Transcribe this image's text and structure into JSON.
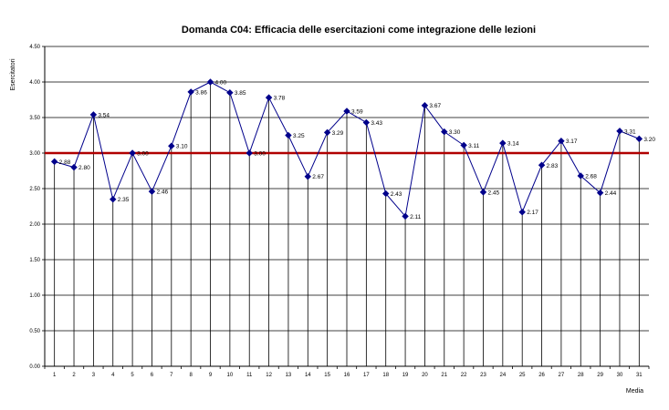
{
  "chart_data": {
    "type": "line",
    "title": "Domanda C04: Efficacia delle esercitazioni come integrazione delle lezioni",
    "xlabel": "Media",
    "ylabel": "Esercitatori",
    "ylim": [
      0,
      4.5
    ],
    "ystep": 0.5,
    "ytick_labels": [
      "0.00",
      "0.50",
      "1.00",
      "1.50",
      "2.00",
      "2.50",
      "3.00",
      "3.50",
      "4.00",
      "4.50"
    ],
    "categories": [
      "1",
      "2",
      "3",
      "4",
      "5",
      "6",
      "7",
      "8",
      "9",
      "10",
      "11",
      "12",
      "13",
      "14",
      "15",
      "16",
      "17",
      "18",
      "19",
      "20",
      "21",
      "22",
      "23",
      "24",
      "25",
      "26",
      "27",
      "28",
      "29",
      "30",
      "31"
    ],
    "series": [
      {
        "name": "Media",
        "color": "#00008b",
        "values": [
          2.88,
          2.8,
          3.54,
          2.35,
          3.0,
          2.46,
          3.1,
          3.86,
          4.0,
          3.85,
          3.0,
          3.78,
          3.25,
          2.67,
          3.29,
          3.59,
          3.43,
          2.43,
          2.11,
          3.67,
          3.3,
          3.11,
          2.45,
          3.14,
          2.17,
          2.83,
          3.17,
          2.68,
          2.44,
          3.31,
          3.2
        ],
        "labels": [
          "2.88",
          "2.80",
          "3.54",
          "2.35",
          "3.00",
          "2.46",
          "3.10",
          "3.86",
          "4.00",
          "3.85",
          "3.00",
          "3.78",
          "3.25",
          "2.67",
          "3.29",
          "3.59",
          "3.43",
          "2.43",
          "2.11",
          "3.67",
          "3.30",
          "3.11",
          "2.45",
          "3.14",
          "2.17",
          "2.83",
          "3.17",
          "2.68",
          "2.44",
          "3.31",
          "3.20"
        ]
      }
    ],
    "reference_line": {
      "value": 3.0,
      "color": "#b00000"
    },
    "grid": true,
    "drop_lines": true
  }
}
